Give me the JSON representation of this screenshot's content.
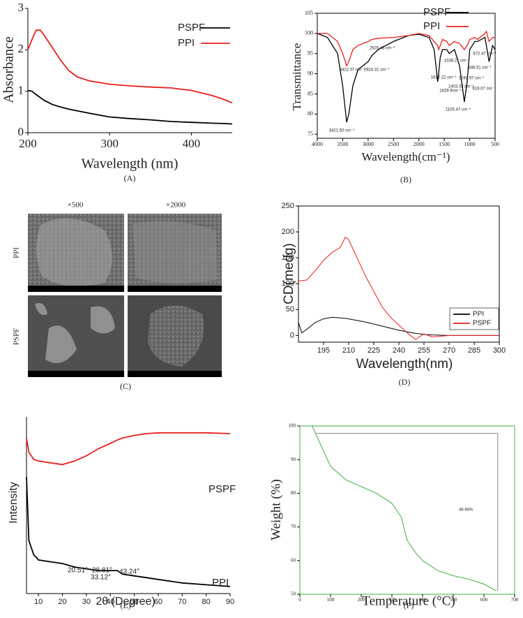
{
  "chart_data": [
    {
      "type": "line",
      "label": "(A)",
      "xlabel": "Wavelength (nm)",
      "ylabel": "Absorbance",
      "x": [
        200,
        205,
        210,
        215,
        220,
        230,
        240,
        250,
        260,
        275,
        300,
        325,
        350,
        375,
        400,
        425,
        440,
        450
      ],
      "series": [
        {
          "name": "PSPF",
          "color": "#000000",
          "values": [
            1.02,
            1.0,
            0.92,
            0.85,
            0.78,
            0.68,
            0.62,
            0.57,
            0.53,
            0.47,
            0.38,
            0.34,
            0.31,
            0.27,
            0.25,
            0.23,
            0.22,
            0.21
          ]
        },
        {
          "name": "PPI",
          "color": "#e8201c",
          "values": [
            2.0,
            2.25,
            2.47,
            2.48,
            2.35,
            2.05,
            1.75,
            1.5,
            1.35,
            1.25,
            1.17,
            1.13,
            1.1,
            1.08,
            1.02,
            0.9,
            0.8,
            0.72
          ]
        }
      ],
      "xlim": [
        200,
        450
      ],
      "ylim": [
        0,
        3
      ],
      "xticks": [
        200,
        300,
        400
      ],
      "yticks": [
        0,
        1,
        2,
        3
      ]
    },
    {
      "type": "line",
      "label": "(B)",
      "xlabel": "Wavelength(cm⁻¹)",
      "ylabel": "Transmittance",
      "x": [
        4000,
        3800,
        3600,
        3500,
        3422,
        3380,
        3300,
        3200,
        3000,
        2925,
        2800,
        2500,
        2200,
        2000,
        1800,
        1700,
        1630,
        1612,
        1580,
        1538,
        1450,
        1403,
        1300,
        1200,
        1105,
        1050,
        1000,
        900,
        846,
        700,
        672,
        619,
        550,
        500
      ],
      "series": [
        {
          "name": "PSPF",
          "color": "#000000",
          "values": [
            100,
            99,
            95,
            87,
            78,
            80,
            87,
            91,
            93,
            94.5,
            96,
            98,
            99.5,
            99.8,
            99,
            96,
            88,
            90,
            94,
            96,
            96,
            95,
            96,
            92,
            83,
            88,
            96,
            98,
            98,
            99,
            97,
            93,
            97,
            96
          ]
        },
        {
          "name": "PPI",
          "color": "#e8201c",
          "values": [
            100,
            100,
            98,
            95,
            92,
            93,
            96,
            97,
            98,
            98.5,
            98.8,
            99,
            99.5,
            100,
            99.5,
            98,
            97,
            96,
            97,
            98.5,
            98,
            97,
            98,
            97.5,
            96,
            97,
            98.5,
            99,
            98.5,
            100,
            100.5,
            98,
            99,
            99
          ]
        }
      ],
      "xlim": [
        4000,
        500
      ],
      "ylim": [
        74,
        105
      ],
      "xticks": [
        4000,
        3500,
        3000,
        2500,
        2000,
        1500,
        1000,
        500
      ],
      "yticks": [
        75,
        80,
        85,
        90,
        95,
        100,
        105
      ],
      "annotations": [
        "2925.46 cm⁻¹",
        "3422.07 cm⁻¹",
        "2924.31 cm⁻¹",
        "3421.50 cm⁻¹",
        "1612.22 cm⁻¹",
        "1538.21 cm⁻¹",
        "1403.33 cm⁻¹",
        "1629.9cm⁻¹",
        "1049.97 cm⁻¹",
        "1105.47 cm⁻¹",
        "846.51 cm⁻¹",
        "672.47 cm⁻¹",
        "619.07 cm⁻¹"
      ]
    },
    {
      "type": "line",
      "label": "(D)",
      "xlabel": "Wavelength(nm)",
      "ylabel": "CD(medg)",
      "x": [
        180,
        182,
        185,
        190,
        195,
        200,
        205,
        208,
        210,
        215,
        220,
        225,
        230,
        235,
        240,
        245,
        250,
        255,
        260,
        270,
        285,
        300
      ],
      "series": [
        {
          "name": "PPI",
          "color": "#000000",
          "values": [
            25,
            5,
            12,
            25,
            32,
            35,
            34,
            33,
            32,
            29,
            26,
            22,
            18,
            14,
            10,
            7,
            4,
            2,
            1,
            0,
            0,
            0
          ]
        },
        {
          "name": "PSPF",
          "color": "#e8201c",
          "values": [
            105,
            106,
            107,
            125,
            145,
            160,
            170,
            190,
            185,
            150,
            115,
            85,
            55,
            35,
            20,
            5,
            -8,
            3,
            -3,
            0,
            0,
            0
          ]
        }
      ],
      "xlim": [
        180,
        300
      ],
      "ylim": [
        -13,
        250
      ],
      "xticks": [
        195,
        210,
        225,
        240,
        255,
        270,
        285,
        300
      ],
      "yticks": [
        0,
        50,
        100,
        150,
        200,
        250
      ]
    },
    {
      "type": "line",
      "label": "(E)",
      "xlabel": "2θ (Degree)",
      "ylabel": "Intensity",
      "x": [
        5,
        6,
        8,
        10,
        15,
        20,
        25,
        30,
        35,
        40,
        43,
        45,
        50,
        55,
        60,
        70,
        80,
        90
      ],
      "series": [
        {
          "name": "PSPF",
          "color": "#e8201c",
          "values": [
            88,
            80,
            76,
            75,
            74,
            73,
            75,
            78,
            82,
            85,
            87,
            88,
            89.5,
            90.5,
            91,
            91,
            91,
            90.5
          ]
        },
        {
          "name": "PPI",
          "color": "#000000",
          "values": [
            66,
            30,
            22,
            19,
            18,
            17,
            15,
            14,
            13,
            13,
            13,
            11,
            10,
            9,
            8,
            6,
            5,
            4
          ]
        }
      ],
      "xlim": [
        5,
        90
      ],
      "ylim": [
        0,
        100
      ],
      "xticks": [
        10,
        20,
        30,
        40,
        50,
        60,
        70,
        80,
        90
      ],
      "annotations": [
        "20.51°",
        "28.81°",
        "33.12°",
        "43.24°"
      ]
    },
    {
      "type": "line",
      "label": "(F)",
      "xlabel": "Temperature (°C)",
      "ylabel": "Weight (%)",
      "x": [
        40,
        50,
        100,
        150,
        200,
        250,
        300,
        330,
        350,
        380,
        400,
        450,
        500,
        550,
        600,
        640
      ],
      "series": [
        {
          "color": "#3fae3f",
          "values": [
            100,
            98,
            88,
            84,
            82,
            80,
            77,
            73,
            66,
            62,
            60,
            57,
            55.5,
            54.5,
            53,
            51
          ]
        }
      ],
      "xlim": [
        0,
        700
      ],
      "ylim": [
        50,
        100
      ],
      "xticks": [
        0,
        100,
        200,
        300,
        400,
        500,
        600,
        700
      ],
      "yticks": [
        50,
        60,
        70,
        80,
        90,
        100
      ],
      "annotations": [
        "46.94%"
      ]
    }
  ],
  "sem_panel": {
    "label": "(C)",
    "columns": [
      "×500",
      "×2000"
    ],
    "rows": [
      "PPI",
      "PSPF"
    ]
  }
}
